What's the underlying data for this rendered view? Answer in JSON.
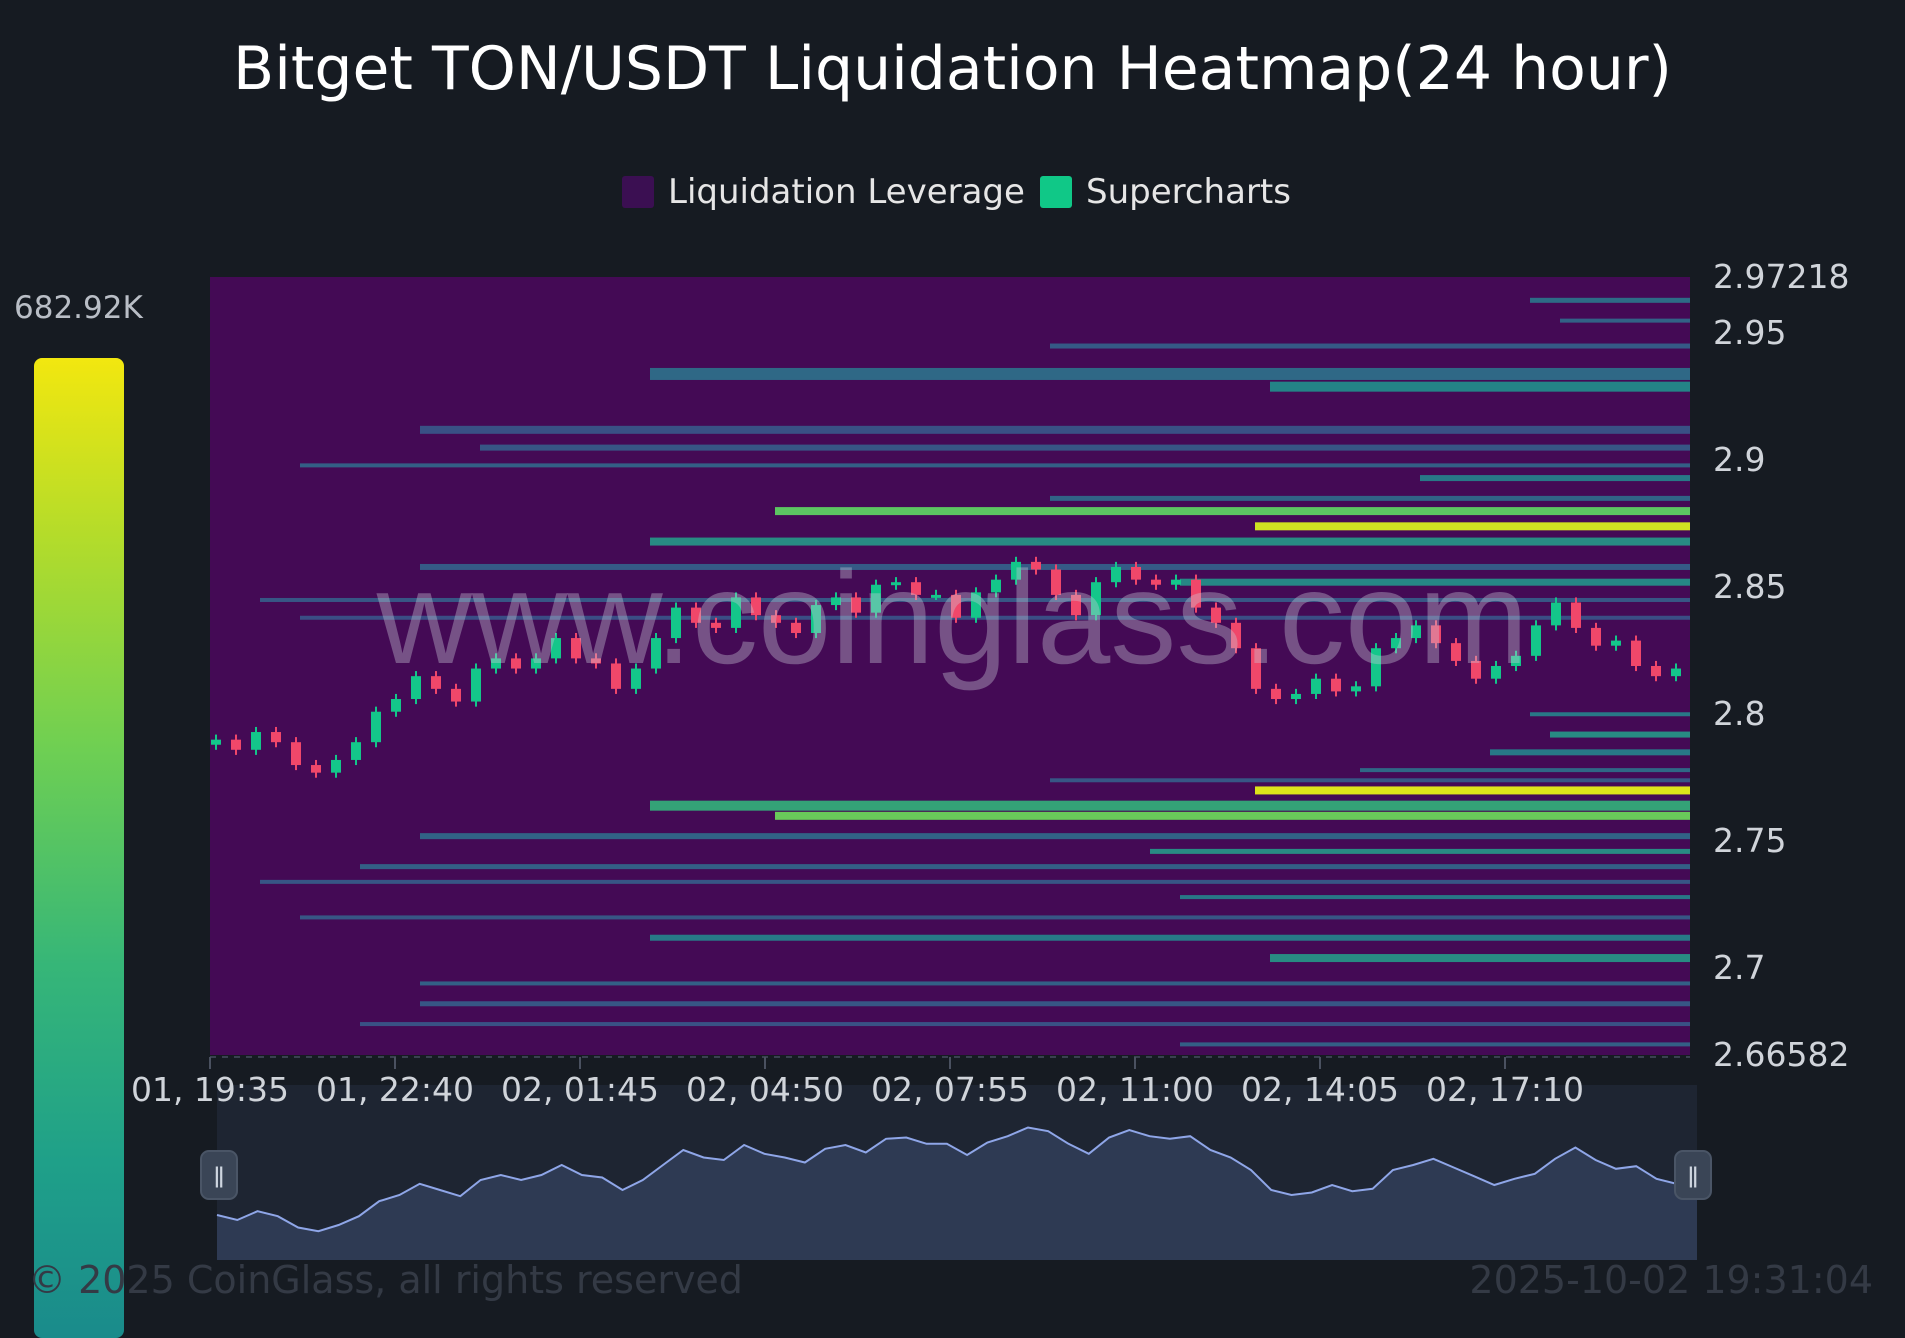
{
  "title": "Bitget TON/USDT Liquidation Heatmap(24 hour)",
  "legend": [
    {
      "label": "Liquidation Leverage",
      "color": "#3b0f52"
    },
    {
      "label": "Supercharts",
      "color": "#10c887"
    }
  ],
  "colorbar": {
    "max_label": "682.92K"
  },
  "watermark": "www.coinglass.com",
  "footer": {
    "copyright": "© 2025 CoinGlass, all rights reserved",
    "timestamp": "2025-10-02 19:31:04"
  },
  "colors": {
    "background": "#161b22",
    "heatmap_background": "#440a55",
    "candle_up": "#14c68a",
    "candle_down": "#f0476a",
    "navigator_line": "#8fa6e8",
    "navigator_fill": "#2f3b55"
  },
  "chart_data": {
    "type": "heatmap",
    "x_unit": "day, HH:MM",
    "x_ticks": [
      "01, 19:35",
      "01, 22:40",
      "02, 01:45",
      "02, 04:50",
      "02, 07:55",
      "02, 11:00",
      "02, 14:05",
      "02, 17:10"
    ],
    "x_tick_positions_index": [
      0,
      37,
      74,
      111,
      148,
      185,
      222,
      259
    ],
    "candle_interval_minutes": 5,
    "y_ticks": [
      "2.97218",
      "2.95",
      "2.9",
      "2.85",
      "2.8",
      "2.75",
      "2.7",
      "2.66582"
    ],
    "ylim": [
      2.66582,
      2.97218
    ],
    "value_range": [
      0,
      682920
    ],
    "price_series": [
      2.79,
      2.786,
      2.793,
      2.789,
      2.78,
      2.777,
      2.782,
      2.789,
      2.801,
      2.806,
      2.815,
      2.81,
      2.805,
      2.818,
      2.822,
      2.818,
      2.822,
      2.83,
      2.822,
      2.82,
      2.81,
      2.818,
      2.83,
      2.842,
      2.836,
      2.834,
      2.846,
      2.839,
      2.836,
      2.832,
      2.843,
      2.846,
      2.84,
      2.851,
      2.852,
      2.847,
      2.847,
      2.838,
      2.848,
      2.853,
      2.86,
      2.857,
      2.847,
      2.839,
      2.852,
      2.858,
      2.853,
      2.851,
      2.853,
      2.842,
      2.836,
      2.826,
      2.81,
      2.806,
      2.808,
      2.814,
      2.809,
      2.811,
      2.826,
      2.83,
      2.835,
      2.828,
      2.821,
      2.814,
      2.819,
      2.823,
      2.835,
      2.844,
      2.834,
      2.827,
      2.829,
      2.819,
      2.815,
      2.818
    ],
    "liquidation_bands": [
      {
        "price": 2.77,
        "intensity": 0.97,
        "from_time": "02, 13:00",
        "to_time": "02, 19:30"
      },
      {
        "price": 2.874,
        "intensity": 0.95,
        "from_time": "02, 13:00",
        "to_time": "02, 19:30"
      },
      {
        "price": 2.76,
        "intensity": 0.8,
        "from_time": "02, 05:00",
        "to_time": "02, 19:30"
      },
      {
        "price": 2.88,
        "intensity": 0.78,
        "from_time": "02, 05:00",
        "to_time": "02, 19:30"
      }
    ]
  },
  "navigator": {
    "handles": [
      "ǁ",
      "ǁ"
    ]
  }
}
